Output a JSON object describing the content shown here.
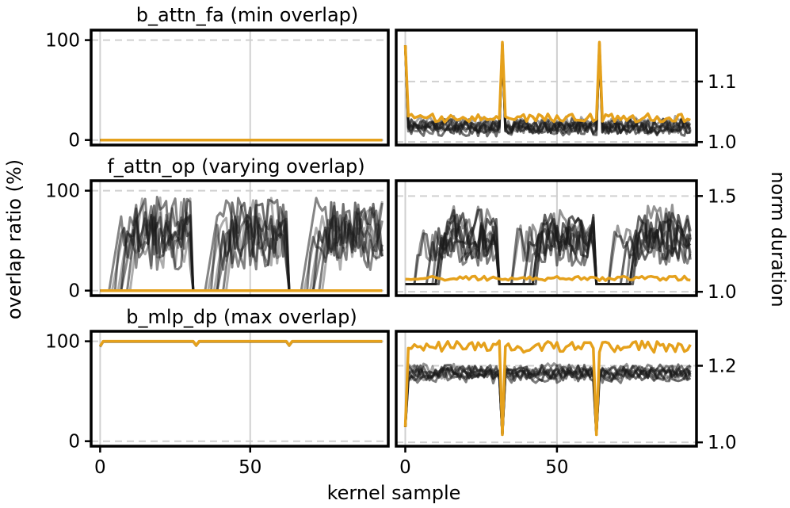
{
  "figure": {
    "ylabel_left": "overlap ratio (%)",
    "ylabel_right": "norm duration",
    "xlabel": "kernel sample",
    "x_ticks": [
      0,
      50
    ],
    "xlim": [
      -3,
      96
    ]
  },
  "colors": {
    "highlight": "#E5A11C",
    "background_series": "#1a1a1a"
  },
  "chart_data": [
    {
      "type": "line",
      "title": "b_attn_fa (min overlap)",
      "left": {
        "ylabel": "overlap ratio (%)",
        "ylim": [
          -5,
          110
        ],
        "yticks": [
          0,
          100
        ],
        "ytick_labels": [
          "0",
          "100"
        ],
        "pattern": "flat",
        "background_series_count": 8,
        "highlight_value": 0
      },
      "right": {
        "ylabel": "norm duration",
        "ylim": [
          0.995,
          1.185
        ],
        "yticks": [
          1.0,
          1.1
        ],
        "ytick_labels": [
          "1.0",
          "1.1"
        ],
        "pattern": "noise_spikes",
        "background_base": 1.025,
        "background_noise": 0.012,
        "background_series_count": 8,
        "highlight_base": 1.04,
        "highlight_noise": 0.007,
        "start_value": 1.16,
        "spikes": [
          {
            "x": 32,
            "value": 1.165
          },
          {
            "x": 64,
            "value": 1.165
          }
        ]
      }
    },
    {
      "type": "line",
      "title": "f_attn_op (varying overlap)",
      "left": {
        "ylabel": "overlap ratio (%)",
        "ylim": [
          -5,
          110
        ],
        "yticks": [
          0,
          100
        ],
        "ytick_labels": [
          "0",
          "100"
        ],
        "pattern": "cyclic_ramps",
        "cycle_starts": [
          0,
          32,
          64
        ],
        "cycle_length": 32,
        "background_series_count": 8,
        "highlight_value": 0
      },
      "right": {
        "ylabel": "norm duration",
        "ylim": [
          0.98,
          1.58
        ],
        "yticks": [
          1.0,
          1.5
        ],
        "ytick_labels": [
          "1.0",
          "1.5"
        ],
        "pattern": "cyclic_ramps",
        "cycle_starts": [
          0,
          32,
          64
        ],
        "cycle_length": 32,
        "background_low": 1.04,
        "background_high": 1.5,
        "background_series_count": 8,
        "highlight_base": 1.07,
        "highlight_noise": 0.012
      }
    },
    {
      "type": "line",
      "title": "b_mlp_dp (max overlap)",
      "left": {
        "ylabel": "overlap ratio (%)",
        "ylim": [
          -5,
          110
        ],
        "yticks": [
          0,
          100
        ],
        "ytick_labels": [
          "0",
          "100"
        ],
        "pattern": "flat_high",
        "highlight_value": 100,
        "start_value": 95,
        "dips": [
          {
            "x": 32,
            "value": 96
          },
          {
            "x": 63,
            "value": 96
          }
        ]
      },
      "right": {
        "ylabel": "norm duration",
        "ylim": [
          0.99,
          1.29
        ],
        "yticks": [
          1.0,
          1.2
        ],
        "ytick_labels": [
          "1.0",
          "1.2"
        ],
        "pattern": "noise_dips",
        "background_base": 1.18,
        "background_noise": 0.018,
        "background_series_count": 8,
        "highlight_base": 1.25,
        "highlight_noise": 0.015,
        "start_value": 1.04,
        "dips": [
          {
            "x": 32,
            "value": 1.02
          },
          {
            "x": 63,
            "value": 1.02
          }
        ]
      }
    }
  ]
}
